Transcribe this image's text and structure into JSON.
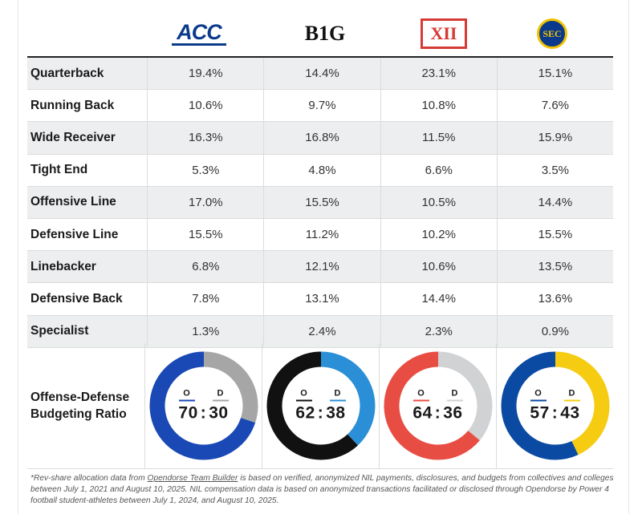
{
  "conferences": [
    {
      "logo_text": "ACC",
      "logo_icon": "acc-logo",
      "color_offense": "#1a49b5",
      "color_defense": "#a6a6a6",
      "offense": 70,
      "defense": 30
    },
    {
      "logo_text": "B1G",
      "logo_icon": "big-ten-logo",
      "color_offense": "#111111",
      "color_defense": "#2a8fd6",
      "offense": 62,
      "defense": 38
    },
    {
      "logo_text": "XII",
      "logo_icon": "big-12-logo",
      "color_offense": "#e84d43",
      "color_defense": "#d0d2d4",
      "offense": 64,
      "defense": 36
    },
    {
      "logo_text": "SEC",
      "logo_icon": "sec-logo",
      "color_offense": "#0b4aa3",
      "color_defense": "#f6cc12",
      "offense": 57,
      "defense": 43
    }
  ],
  "chart_data": {
    "type": "table",
    "columns": [
      "ACC",
      "B1G",
      "XII",
      "SEC"
    ],
    "rows": [
      {
        "label": "Quarterback",
        "values": [
          "19.4%",
          "14.4%",
          "23.1%",
          "15.1%"
        ]
      },
      {
        "label": "Running Back",
        "values": [
          "10.6%",
          "9.7%",
          "10.8%",
          "7.6%"
        ]
      },
      {
        "label": "Wide Receiver",
        "values": [
          "16.3%",
          "16.8%",
          "11.5%",
          "15.9%"
        ]
      },
      {
        "label": "Tight End",
        "values": [
          "5.3%",
          "4.8%",
          "6.6%",
          "3.5%"
        ]
      },
      {
        "label": "Offensive Line",
        "values": [
          "17.0%",
          "15.5%",
          "10.5%",
          "14.4%"
        ]
      },
      {
        "label": "Defensive Line",
        "values": [
          "15.5%",
          "11.2%",
          "10.2%",
          "15.5%"
        ]
      },
      {
        "label": "Linebacker",
        "values": [
          "6.8%",
          "12.1%",
          "10.6%",
          "13.5%"
        ]
      },
      {
        "label": "Defensive Back",
        "values": [
          "7.8%",
          "13.1%",
          "14.4%",
          "13.6%"
        ]
      },
      {
        "label": "Specialist",
        "values": [
          "1.3%",
          "2.4%",
          "2.3%",
          "0.9%"
        ]
      }
    ],
    "ratio": {
      "label_line1": "Offense-Defense",
      "label_line2": "Budgeting Ratio",
      "offense_letter": "O",
      "defense_letter": "D",
      "separator": ":",
      "values": [
        {
          "offense": 70,
          "defense": 30
        },
        {
          "offense": 62,
          "defense": 38
        },
        {
          "offense": 64,
          "defense": 36
        },
        {
          "offense": 57,
          "defense": 43
        }
      ]
    }
  },
  "footnote": {
    "prefix": "*Rev-share allocation data from ",
    "link_text": "Opendorse Team Builder",
    "rest": " is based on verified, anonymized NIL payments, disclosures, and budgets from collectives and colleges between July 1, 2021 and August 10, 2025. NIL compensation data is based on anonymized transactions facilitated or disclosed through Opendorse by Power 4 football student-athletes between July 1, 2024, and August 10, 2025."
  }
}
